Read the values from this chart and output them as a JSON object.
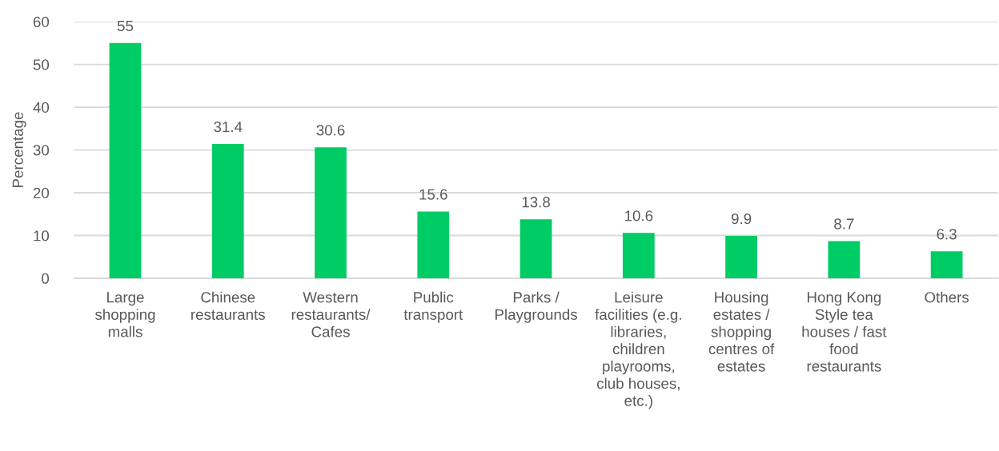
{
  "chart_data": {
    "type": "bar",
    "categories": [
      "Large\nshopping\nmalls",
      "Chinese\nrestaurants",
      "Western\nrestaurants/\nCafes",
      "Public\ntransport",
      "Parks /\nPlaygrounds",
      "Leisure\nfacilities (e.g.\nlibraries,\nchildren\nplayrooms,\nclub houses,\netc.)",
      "Housing\nestates /\nshopping\ncentres of\nestates",
      "Hong Kong\nStyle tea\nhouses / fast\nfood\nrestaurants",
      "Others"
    ],
    "values": [
      55,
      31.4,
      30.6,
      15.6,
      13.8,
      10.6,
      9.9,
      8.7,
      6.3
    ],
    "color": "#00cc66",
    "ylabel": "Percentage",
    "ylim": [
      0,
      60
    ],
    "yticks": [
      0,
      10,
      20,
      30,
      40,
      50,
      60
    ],
    "grid": "y",
    "data_labels": true
  }
}
